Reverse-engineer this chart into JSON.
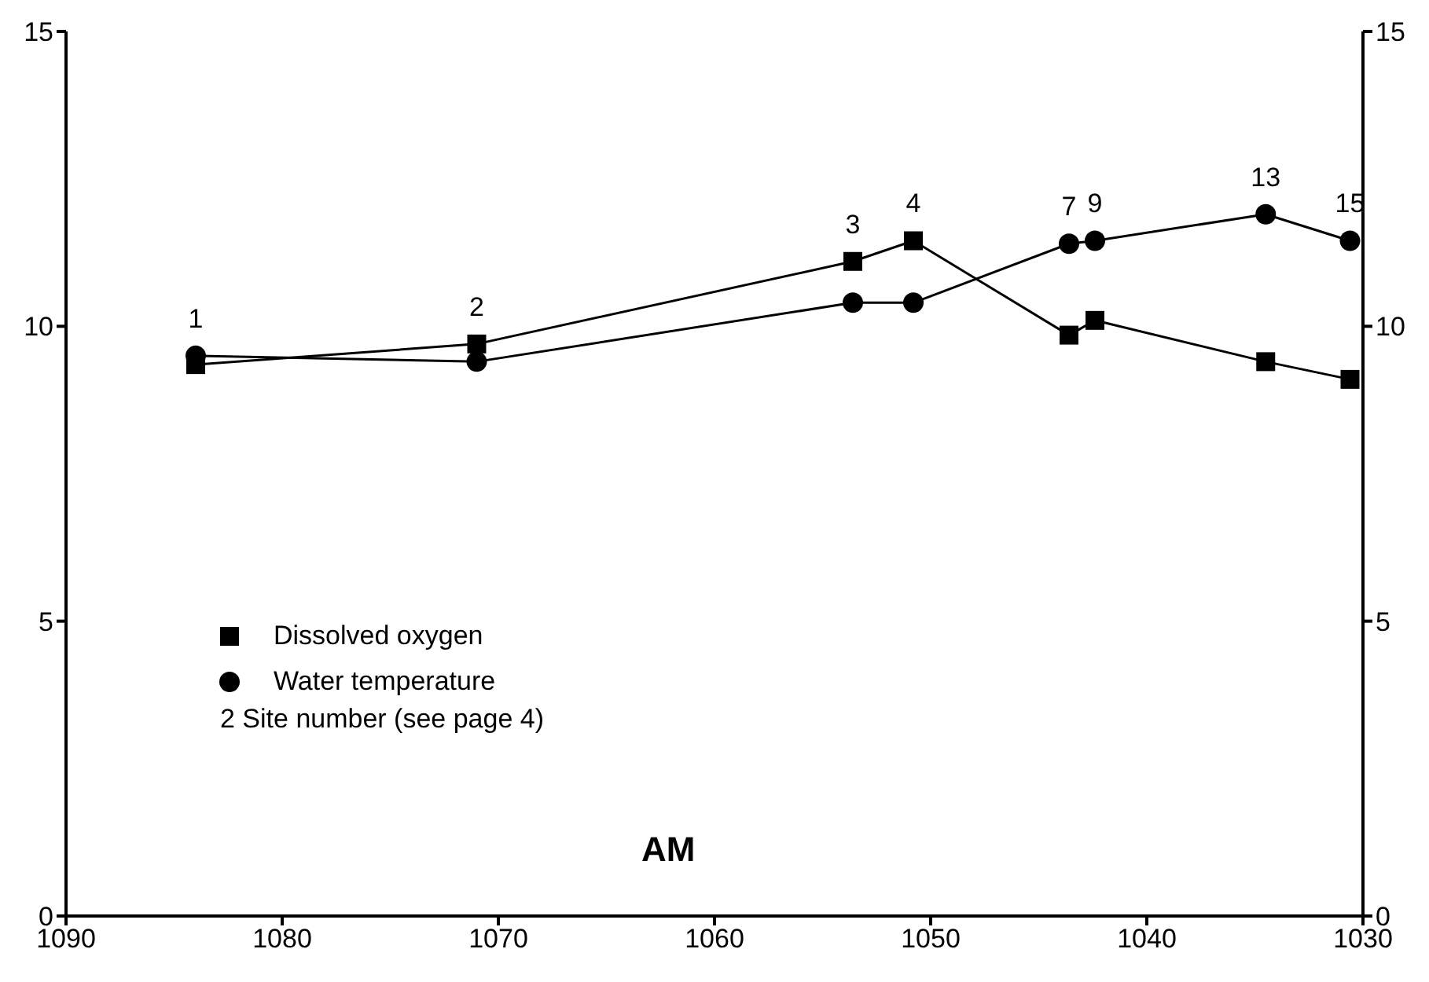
{
  "chart_data": {
    "type": "line",
    "xlim": [
      1090,
      1030
    ],
    "xticks": [
      1090,
      1080,
      1070,
      1060,
      1050,
      1040,
      1030
    ],
    "ylim": [
      0,
      15
    ],
    "yticks": [
      0,
      5,
      10,
      15
    ],
    "y2lim": [
      0,
      15
    ],
    "y2ticks": [
      0,
      5,
      10,
      15
    ],
    "legend": "bottom left",
    "line_style": "solid",
    "series": [
      {
        "name": "Dissolved oxygen",
        "color": "#000000",
        "marker": "square",
        "x": [
          1084,
          1071,
          1053.6,
          1050.8,
          1043.6,
          1042.4,
          1034.5,
          1030.6
        ],
        "values": [
          9.35,
          9.7,
          11.1,
          11.45,
          9.85,
          10.1,
          9.4,
          9.1
        ]
      },
      {
        "name": "Water temperature",
        "color": "#000000",
        "marker": "circle",
        "x": [
          1084,
          1071,
          1053.6,
          1050.8,
          1043.6,
          1042.4,
          1034.5,
          1030.6
        ],
        "values": [
          9.5,
          9.4,
          10.4,
          10.4,
          11.4,
          11.45,
          11.9,
          11.45
        ]
      }
    ],
    "annotations": [
      {
        "text": "1",
        "x": 1084,
        "y": 9.5
      },
      {
        "text": "2",
        "x": 1071,
        "y": 9.7
      },
      {
        "text": "3",
        "x": 1053.6,
        "y": 11.1
      },
      {
        "text": "4",
        "x": 1050.8,
        "y": 11.45
      },
      {
        "text": "7",
        "x": 1043.6,
        "y": 11.4
      },
      {
        "text": "9",
        "x": 1042.4,
        "y": 11.45
      },
      {
        "text": "13",
        "x": 1034.5,
        "y": 11.9
      },
      {
        "text": "15",
        "x": 1030.6,
        "y": 11.45
      },
      "2 Site number (see page 4)",
      "AM"
    ]
  }
}
